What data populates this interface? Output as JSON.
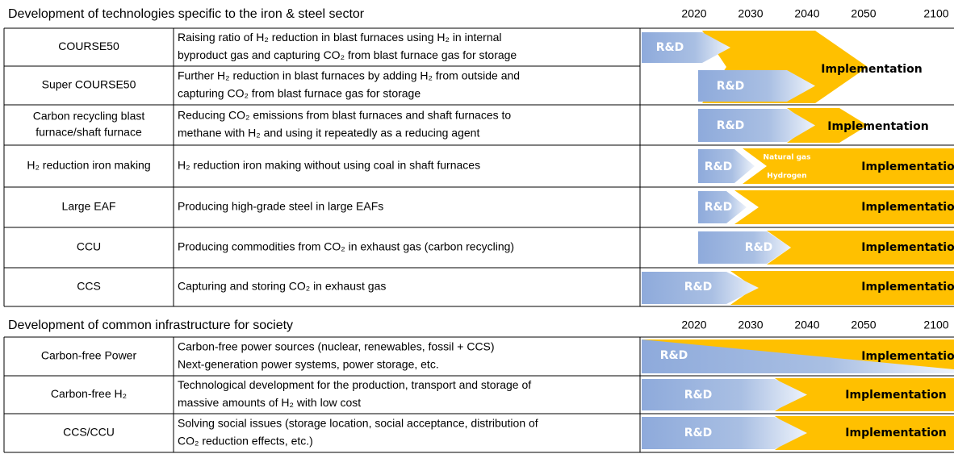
{
  "sections": [
    {
      "title": "Development of technologies specific to the iron & steel sector",
      "years": [
        2020,
        2030,
        2040,
        2050,
        2100
      ],
      "rows": [
        {
          "name": [
            "COURSE50"
          ],
          "description": [
            "Raising ratio of H₂ reduction in blast furnaces using H₂ in internal",
            "byproduct gas and capturing CO₂ from blast furnace gas for storage"
          ],
          "rd": "R&D",
          "impl": "Implementation"
        },
        {
          "name": [
            "Super COURSE50"
          ],
          "description": [
            "Further H₂ reduction in blast furnaces by adding H₂ from outside and",
            "capturing CO₂ from blast furnace gas for storage"
          ],
          "rd": "R&D"
        },
        {
          "name": [
            "Carbon recycling blast",
            "furnace/shaft furnace"
          ],
          "description": [
            "Reducing CO₂ emissions from blast furnaces and shaft furnaces to",
            "methane with H₂ and using it repeatedly as a reducing agent"
          ],
          "rd": "R&D",
          "impl": "Implementation"
        },
        {
          "name": [
            "H₂ reduction iron making"
          ],
          "description": [
            "H₂ reduction iron making without using coal in shaft furnaces"
          ],
          "rd": "R&D",
          "impl": "Implementation",
          "notes": [
            "Natural gas",
            "Hydrogen"
          ]
        },
        {
          "name": [
            "Large EAF"
          ],
          "description": [
            "Producing high-grade steel in large EAFs"
          ],
          "rd": "R&D",
          "impl": "Implementation"
        },
        {
          "name": [
            "CCU"
          ],
          "description": [
            "Producing commodities from CO₂ in exhaust gas (carbon recycling)"
          ],
          "rd": "R&D",
          "impl": "Implementation"
        },
        {
          "name": [
            "CCS"
          ],
          "description": [
            "Capturing and storing CO₂ in exhaust gas"
          ],
          "rd": "R&D",
          "impl": "Implementation"
        }
      ]
    },
    {
      "title": "Development of common infrastructure for society",
      "years": [
        2020,
        2030,
        2040,
        2050,
        2100
      ],
      "rows": [
        {
          "name": [
            "Carbon-free Power"
          ],
          "description": [
            "Carbon-free power sources (nuclear, renewables, fossil + CCS)",
            "Next-generation power systems, power storage, etc."
          ],
          "rd": "R&D",
          "impl": "Implementation"
        },
        {
          "name": [
            "Carbon-free H₂"
          ],
          "description": [
            "Technological development for the production, transport and storage of",
            "massive amounts of H₂ with low cost"
          ],
          "rd": "R&D",
          "impl": "Implementation"
        },
        {
          "name": [
            "CCS/CCU"
          ],
          "description": [
            "Solving social issues (storage location, social acceptance, distribution of",
            "CO₂ reduction effects, etc.)"
          ],
          "rd": "R&D",
          "impl": "Implementation"
        }
      ]
    }
  ]
}
